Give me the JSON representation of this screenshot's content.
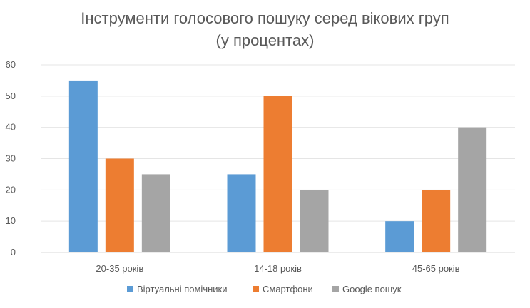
{
  "chart_data": {
    "type": "bar",
    "title_line1": "Інструменти голосового пошуку серед вікових груп",
    "title_line2": "(у процентах)",
    "categories": [
      "20-35 років",
      "14-18 років",
      "45-65 років"
    ],
    "series": [
      {
        "name": "Віртуальні помічники",
        "color": "#5B9BD5",
        "values": [
          55,
          25,
          10
        ]
      },
      {
        "name": "Смартфони",
        "color": "#ED7D31",
        "values": [
          30,
          50,
          20
        ]
      },
      {
        "name": "Google пошук",
        "color": "#A5A5A5",
        "values": [
          25,
          20,
          40
        ]
      }
    ],
    "yticks": [
      "0",
      "10",
      "20",
      "30",
      "40",
      "50",
      "60"
    ],
    "ylim": [
      0,
      60
    ],
    "grid": true,
    "legend_position": "bottom"
  }
}
